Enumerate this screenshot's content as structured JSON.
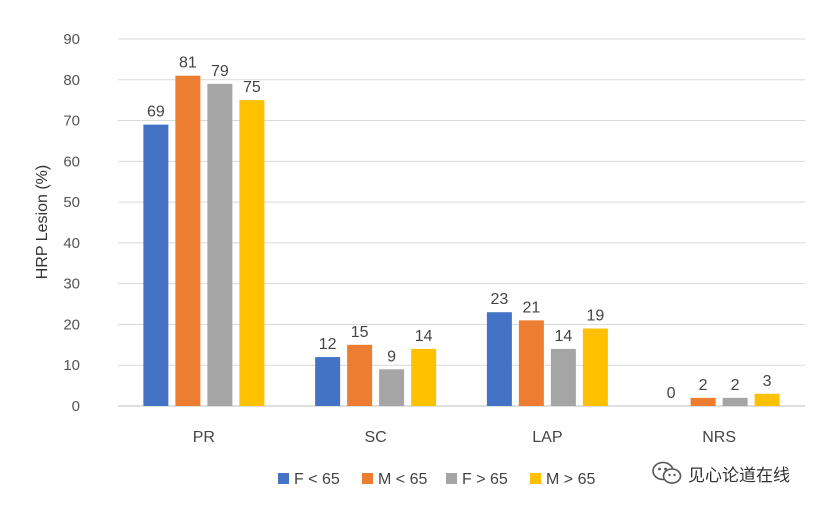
{
  "chart_data": {
    "type": "bar",
    "categories": [
      "PR",
      "SC",
      "LAP",
      "NRS"
    ],
    "series": [
      {
        "name": "F < 65",
        "values": [
          69,
          12,
          23,
          0
        ],
        "color": "#4472C4"
      },
      {
        "name": "M < 65",
        "values": [
          81,
          15,
          21,
          2
        ],
        "color": "#ED7D31"
      },
      {
        "name": "F > 65",
        "values": [
          79,
          9,
          14,
          2
        ],
        "color": "#A5A5A5"
      },
      {
        "name": "M > 65",
        "values": [
          75,
          14,
          19,
          3
        ],
        "color": "#FFC000"
      }
    ],
    "ylabel": "HRP Lesion (%)",
    "ylim": [
      0,
      90
    ],
    "yticks": [
      0,
      10,
      20,
      30,
      40,
      50,
      60,
      70,
      80,
      90
    ],
    "grid": true,
    "legend": "bottom"
  },
  "watermark": {
    "text": "见心论道在线",
    "icon": "wechat-icon"
  }
}
